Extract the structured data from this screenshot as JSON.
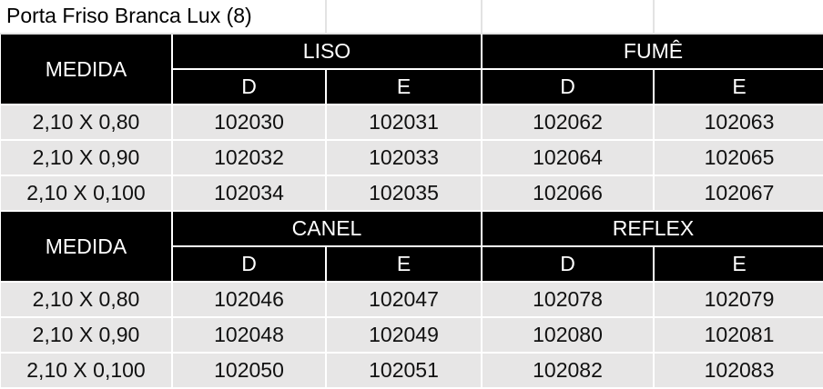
{
  "title": "Porta Friso Branca Lux (8)",
  "sections": [
    {
      "measure_label": "MEDIDA",
      "groups": [
        {
          "label": "LISO",
          "cols": [
            "D",
            "E"
          ]
        },
        {
          "label": "FUMÊ",
          "cols": [
            "D",
            "E"
          ]
        }
      ],
      "rows": [
        [
          "2,10 X 0,80",
          "102030",
          "102031",
          "102062",
          "102063"
        ],
        [
          "2,10 X 0,90",
          "102032",
          "102033",
          "102064",
          "102065"
        ],
        [
          "2,10 X 0,100",
          "102034",
          "102035",
          "102066",
          "102067"
        ]
      ]
    },
    {
      "measure_label": "MEDIDA",
      "groups": [
        {
          "label": "CANEL",
          "cols": [
            "D",
            "E"
          ]
        },
        {
          "label": "REFLEX",
          "cols": [
            "D",
            "E"
          ]
        }
      ],
      "rows": [
        [
          "2,10 X 0,80",
          "102046",
          "102047",
          "102078",
          "102079"
        ],
        [
          "2,10 X 0,90",
          "102048",
          "102049",
          "102080",
          "102081"
        ],
        [
          "2,10 X 0,100",
          "102050",
          "102051",
          "102082",
          "102083"
        ]
      ]
    }
  ],
  "colors": {
    "header_bg": "#000000",
    "header_text": "#ffffff",
    "data_bg": "#e7e6e6"
  }
}
